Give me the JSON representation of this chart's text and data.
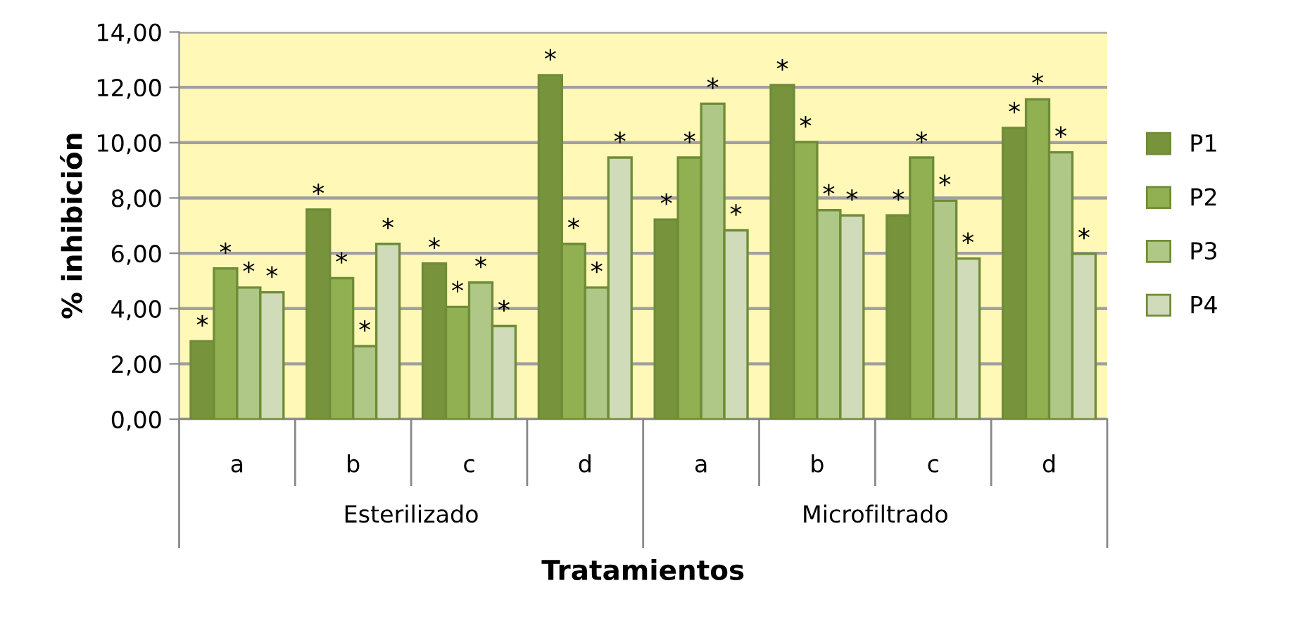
{
  "chart_data": {
    "type": "bar",
    "xlabel": "Tratamientos",
    "ylabel": "% inhibición",
    "categories": [
      "a",
      "b",
      "c",
      "d",
      "a",
      "b",
      "c",
      "d"
    ],
    "annotations": [
      "Esterilizado",
      "Microfiltrado"
    ],
    "series": [
      {
        "name": "P1",
        "color": "#77933c",
        "values": [
          2.82,
          7.58,
          5.63,
          12.44,
          7.22,
          12.08,
          7.37,
          10.53
        ],
        "value_labels": [
          "*",
          "*",
          "*",
          "*",
          "*",
          "*",
          "*",
          "*"
        ]
      },
      {
        "name": "P2",
        "color": "#91b052",
        "values": [
          5.45,
          5.1,
          4.06,
          6.34,
          9.46,
          10.02,
          9.46,
          11.57
        ],
        "value_labels": [
          "*",
          "*",
          "*",
          "*",
          "*",
          "*",
          "*",
          "*"
        ]
      },
      {
        "name": "P3",
        "color": "#afc787",
        "values": [
          4.76,
          2.64,
          4.94,
          4.76,
          11.41,
          7.56,
          7.9,
          9.65
        ],
        "value_labels": [
          "*",
          "*",
          "*",
          "*",
          "*",
          "*",
          "*",
          "*"
        ]
      },
      {
        "name": "P4",
        "color": "#d0dbb9",
        "values": [
          4.59,
          6.34,
          3.37,
          9.46,
          6.83,
          7.37,
          5.81,
          5.98
        ],
        "value_labels": [
          "*",
          "*",
          "*",
          "*",
          "*",
          "*",
          "*",
          "*"
        ]
      }
    ],
    "ylim": [
      0,
      14
    ],
    "yticks": [
      {
        "value": 0,
        "label": "0,00"
      },
      {
        "value": 2,
        "label": "2,00"
      },
      {
        "value": 4,
        "label": "4,00"
      },
      {
        "value": 6,
        "label": "6,00"
      },
      {
        "value": 8,
        "label": "8,00"
      },
      {
        "value": 10,
        "label": "10,00"
      },
      {
        "value": 12,
        "label": "12,00"
      },
      {
        "value": 14,
        "label": "14,00"
      }
    ],
    "grid": "y",
    "legend": "right"
  }
}
